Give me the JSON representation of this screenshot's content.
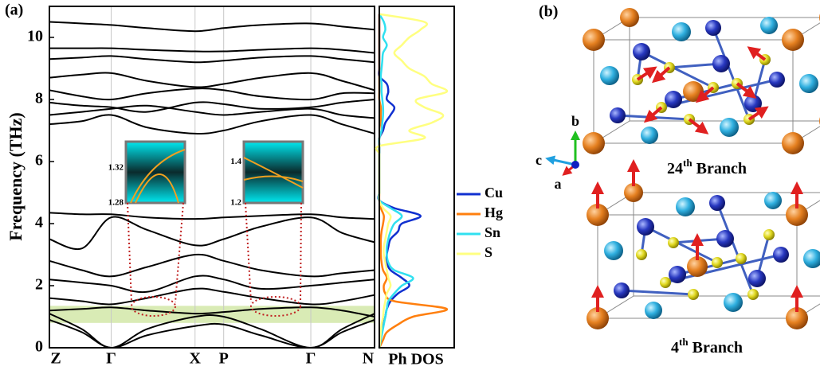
{
  "panel_a_label": "(a)",
  "panel_b_label": "(b)",
  "chart_data": [
    {
      "type": "line",
      "ylabel": "Frequency (THz)",
      "color": "#000000",
      "ylim": [
        0,
        11
      ],
      "yticks": [
        0,
        2,
        4,
        6,
        8,
        10
      ],
      "xlim": [
        0,
        1
      ],
      "xticks": [
        {
          "value": 0,
          "label": "Z"
        },
        {
          "value": 0.19,
          "label": "Γ"
        },
        {
          "value": 0.448,
          "label": "X"
        },
        {
          "value": 0.536,
          "label": "P"
        },
        {
          "value": 0.804,
          "label": "Γ"
        },
        {
          "value": 1,
          "label": "N"
        }
      ],
      "grid": true,
      "highlight_band": {
        "ymin": 0.8,
        "ymax": 1.35,
        "color": "#cfe6a3"
      },
      "x": [
        0,
        0.1,
        0.19,
        0.3,
        0.448,
        0.536,
        0.65,
        0.804,
        0.9,
        1
      ],
      "series": [
        {
          "values": [
            10.5,
            10.45,
            10.4,
            10.3,
            10.2,
            10.3,
            10.4,
            10.45,
            10.35,
            10.25
          ]
        },
        {
          "values": [
            9.65,
            9.65,
            9.65,
            9.6,
            9.55,
            9.55,
            9.6,
            9.65,
            9.6,
            9.5
          ]
        },
        {
          "values": [
            9.3,
            9.35,
            9.4,
            9.3,
            9.2,
            9.25,
            9.35,
            9.4,
            9.3,
            9.2
          ]
        },
        {
          "values": [
            8.7,
            8.8,
            8.85,
            8.6,
            8.4,
            8.5,
            8.7,
            8.85,
            8.6,
            8.3
          ]
        },
        {
          "values": [
            8.3,
            8.1,
            8.0,
            8.2,
            8.35,
            8.3,
            8.1,
            8.0,
            8.2,
            8.2
          ]
        },
        {
          "values": [
            7.9,
            7.8,
            7.75,
            7.6,
            7.9,
            7.85,
            7.7,
            7.75,
            7.9,
            8.0
          ]
        },
        {
          "values": [
            7.5,
            7.6,
            7.7,
            7.8,
            7.6,
            7.5,
            7.6,
            7.7,
            7.5,
            7.4
          ]
        },
        {
          "values": [
            7.2,
            7.3,
            7.5,
            7.1,
            6.9,
            7.0,
            7.3,
            7.5,
            7.2,
            6.9
          ]
        },
        {
          "values": [
            4.35,
            4.3,
            4.3,
            4.2,
            4.15,
            4.2,
            4.25,
            4.3,
            4.2,
            4.15
          ]
        },
        {
          "values": [
            3.5,
            3.2,
            4.2,
            3.8,
            3.3,
            3.5,
            3.9,
            4.2,
            3.7,
            3.4
          ]
        },
        {
          "values": [
            2.8,
            2.5,
            2.3,
            2.6,
            3.0,
            2.8,
            2.5,
            2.3,
            2.4,
            2.5
          ]
        },
        {
          "values": [
            2.2,
            2.1,
            2.0,
            1.8,
            2.3,
            2.2,
            1.9,
            2.0,
            2.1,
            2.2
          ]
        },
        {
          "values": [
            1.6,
            1.5,
            1.4,
            1.6,
            1.9,
            1.8,
            1.6,
            1.4,
            1.5,
            1.7
          ]
        },
        {
          "values": [
            1.2,
            1.25,
            1.3,
            1.2,
            1.1,
            1.15,
            1.25,
            1.3,
            1.2,
            1.0
          ]
        },
        {
          "values": [
            1.1,
            0.6,
            0,
            0.6,
            1.0,
            1.0,
            0.6,
            0,
            0.6,
            1.1
          ]
        },
        {
          "values": [
            0.9,
            0.5,
            0,
            0.4,
            0.7,
            0.75,
            0.4,
            0,
            0.5,
            0.9
          ]
        }
      ],
      "insets": [
        {
          "ylim": [
            1.28,
            1.35
          ],
          "yticks": [
            1.28,
            1.32
          ]
        },
        {
          "ylim": [
            1.2,
            1.5
          ],
          "yticks": [
            1.2,
            1.4
          ]
        }
      ]
    },
    {
      "type": "line",
      "xlabel": "Ph DOS",
      "ylim": [
        0,
        11
      ],
      "xlim": [
        0,
        1
      ],
      "y": [
        0,
        0.25,
        0.5,
        0.75,
        1,
        1.25,
        1.5,
        1.75,
        2,
        2.25,
        2.5,
        2.75,
        3,
        3.25,
        3.5,
        3.75,
        4,
        4.25,
        4.5,
        4.75,
        5,
        5.25,
        5.5,
        5.75,
        6,
        6.25,
        6.5,
        6.75,
        7,
        7.25,
        7.5,
        7.75,
        8,
        8.25,
        8.5,
        8.75,
        9,
        9.25,
        9.5,
        9.75,
        10,
        10.25,
        10.5,
        10.75
      ],
      "series": [
        {
          "name": "Cu",
          "color": "#1030d0",
          "values": [
            0,
            0.01,
            0.03,
            0.05,
            0.08,
            0.1,
            0.15,
            0.25,
            0.4,
            0.3,
            0.15,
            0.1,
            0.1,
            0.12,
            0.15,
            0.25,
            0.3,
            0.55,
            0.2,
            0,
            0,
            0,
            0,
            0,
            0,
            0,
            0,
            0,
            0.05,
            0.08,
            0.15,
            0.2,
            0.1,
            0.12,
            0.1,
            0,
            0,
            0,
            0,
            0,
            0,
            0,
            0,
            0
          ]
        },
        {
          "name": "Hg",
          "color": "#ff7f0e",
          "values": [
            0,
            0.05,
            0.1,
            0.25,
            0.45,
            0.9,
            0.2,
            0.08,
            0.06,
            0.1,
            0.05,
            0.03,
            0.02,
            0.02,
            0.02,
            0.03,
            0.05,
            0.06,
            0.02,
            0,
            0,
            0,
            0,
            0,
            0,
            0,
            0,
            0,
            0.03,
            0.02,
            0.02,
            0.02,
            0,
            0,
            0,
            0,
            0,
            0,
            0,
            0,
            0,
            0,
            0,
            0
          ]
        },
        {
          "name": "Sn",
          "color": "#30e0f0",
          "values": [
            0,
            0.02,
            0.04,
            0.06,
            0.08,
            0.1,
            0.12,
            0.2,
            0.3,
            0.45,
            0.2,
            0.12,
            0.1,
            0.1,
            0.12,
            0.15,
            0.2,
            0.3,
            0.15,
            0,
            0,
            0,
            0,
            0,
            0,
            0,
            0,
            0,
            0.03,
            0.04,
            0.05,
            0.05,
            0.04,
            0.03,
            0.03,
            0.02,
            0.03,
            0.04,
            0.05,
            0.1,
            0.05,
            0.08,
            0.06,
            0
          ]
        },
        {
          "name": "S",
          "color": "#ffff80",
          "values": [
            0,
            0.01,
            0.02,
            0.03,
            0.05,
            0.06,
            0.08,
            0.1,
            0.15,
            0.12,
            0.1,
            0.08,
            0.06,
            0.06,
            0.08,
            0.1,
            0.12,
            0.15,
            0.05,
            0,
            0,
            0,
            0,
            0,
            0,
            0,
            0,
            0.6,
            0.4,
            0.7,
            0.85,
            0.6,
            0.5,
            0.9,
            0.7,
            0.6,
            0.4,
            0.3,
            0.2,
            0.3,
            0.4,
            0.55,
            0.6,
            0
          ]
        }
      ]
    }
  ],
  "structure": {
    "axes": {
      "a": "a",
      "b": "b",
      "c": "c"
    },
    "branches": [
      {
        "ordinal": "24",
        "suffix": "th",
        "text": "Branch"
      },
      {
        "ordinal": "4",
        "suffix": "th",
        "text": "Branch"
      }
    ]
  }
}
